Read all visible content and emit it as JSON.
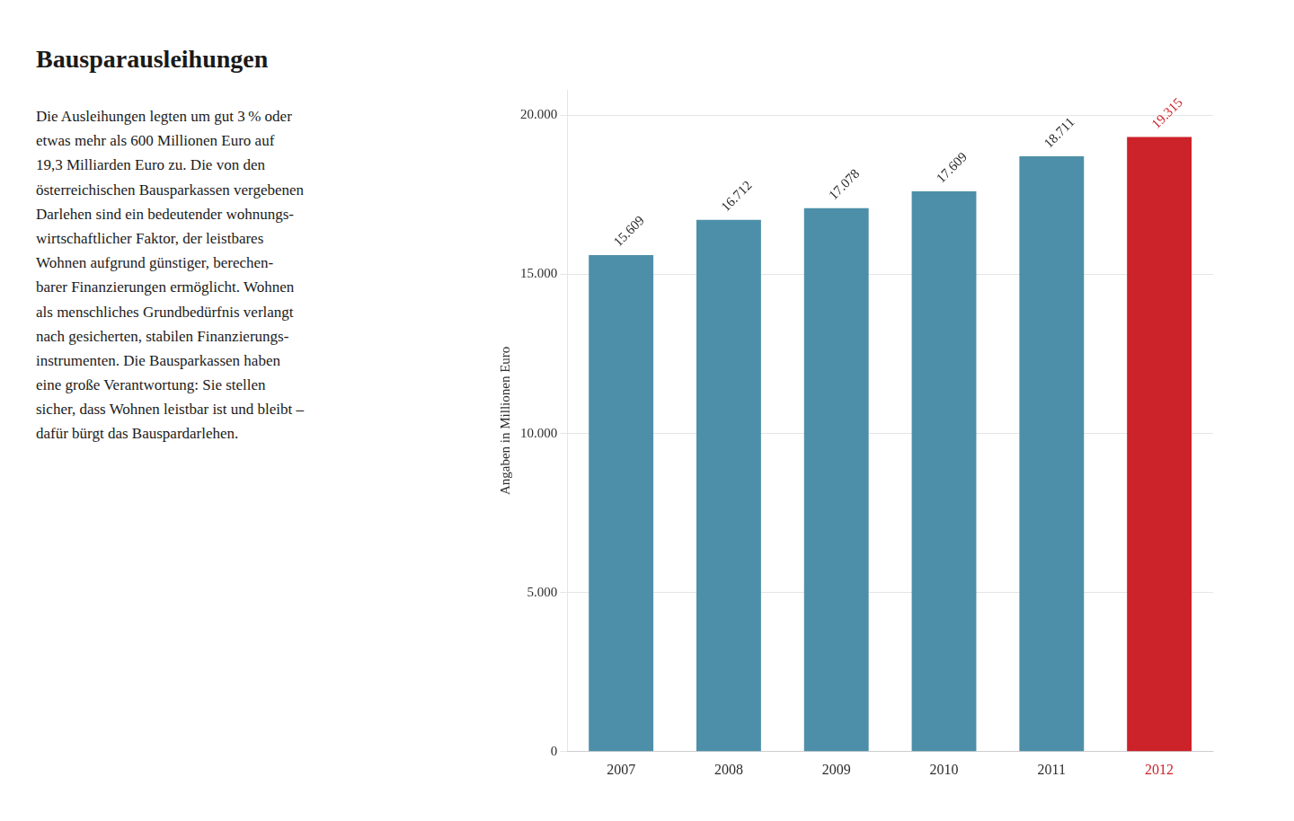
{
  "chart_data": {
    "type": "bar",
    "title": "Bausparausleihungen",
    "annotations": [
      "Die Ausleihungen legten um gut 3 % oder\netwas mehr als 600 Millionen Euro auf\n19,3 Milliarden Euro zu. Die von den\nösterreichischen Bausparkassen vergebenen\nDarlehen sind ein bedeutender wohnungs-\nwirtschaftlicher Faktor, der leistbares\nWohnen aufgrund günstiger, berechen-\nbarer Finanzierungen ermöglicht. Wohnen\nals menschliches Grundbedürfnis verlangt\nnach gesicherten, stabilen Finanzierungs-\ninstrumenten. Die Bausparkassen haben\neine große Verantwortung: Sie stellen\nsicher, dass Wohnen leistbar ist und bleibt –\ndafür bürgt das Bauspardarlehen."
    ],
    "y_label": "Angaben in Millionen Euro",
    "categories": [
      "2007",
      "2008",
      "2009",
      "2010",
      "2011",
      "2012"
    ],
    "values": [
      15609,
      16712,
      17078,
      17609,
      18711,
      19315
    ],
    "value_labels": [
      "15.609",
      "16.712",
      "17.078",
      "17.609",
      "18.711",
      "19.315"
    ],
    "data_labels": true,
    "colors": [
      "#4d8fa8",
      "#4d8fa8",
      "#4d8fa8",
      "#4d8fa8",
      "#4d8fa8",
      "#cc2229"
    ],
    "ylim": [
      0,
      20800
    ],
    "yticks": [
      0,
      {
        "value": 5000,
        "label": "5.000"
      },
      {
        "value": 10000,
        "label": "10.000"
      },
      {
        "value": 15000,
        "label": "15.000"
      },
      {
        "value": 20000,
        "label": "20.000"
      }
    ],
    "grid": true
  }
}
